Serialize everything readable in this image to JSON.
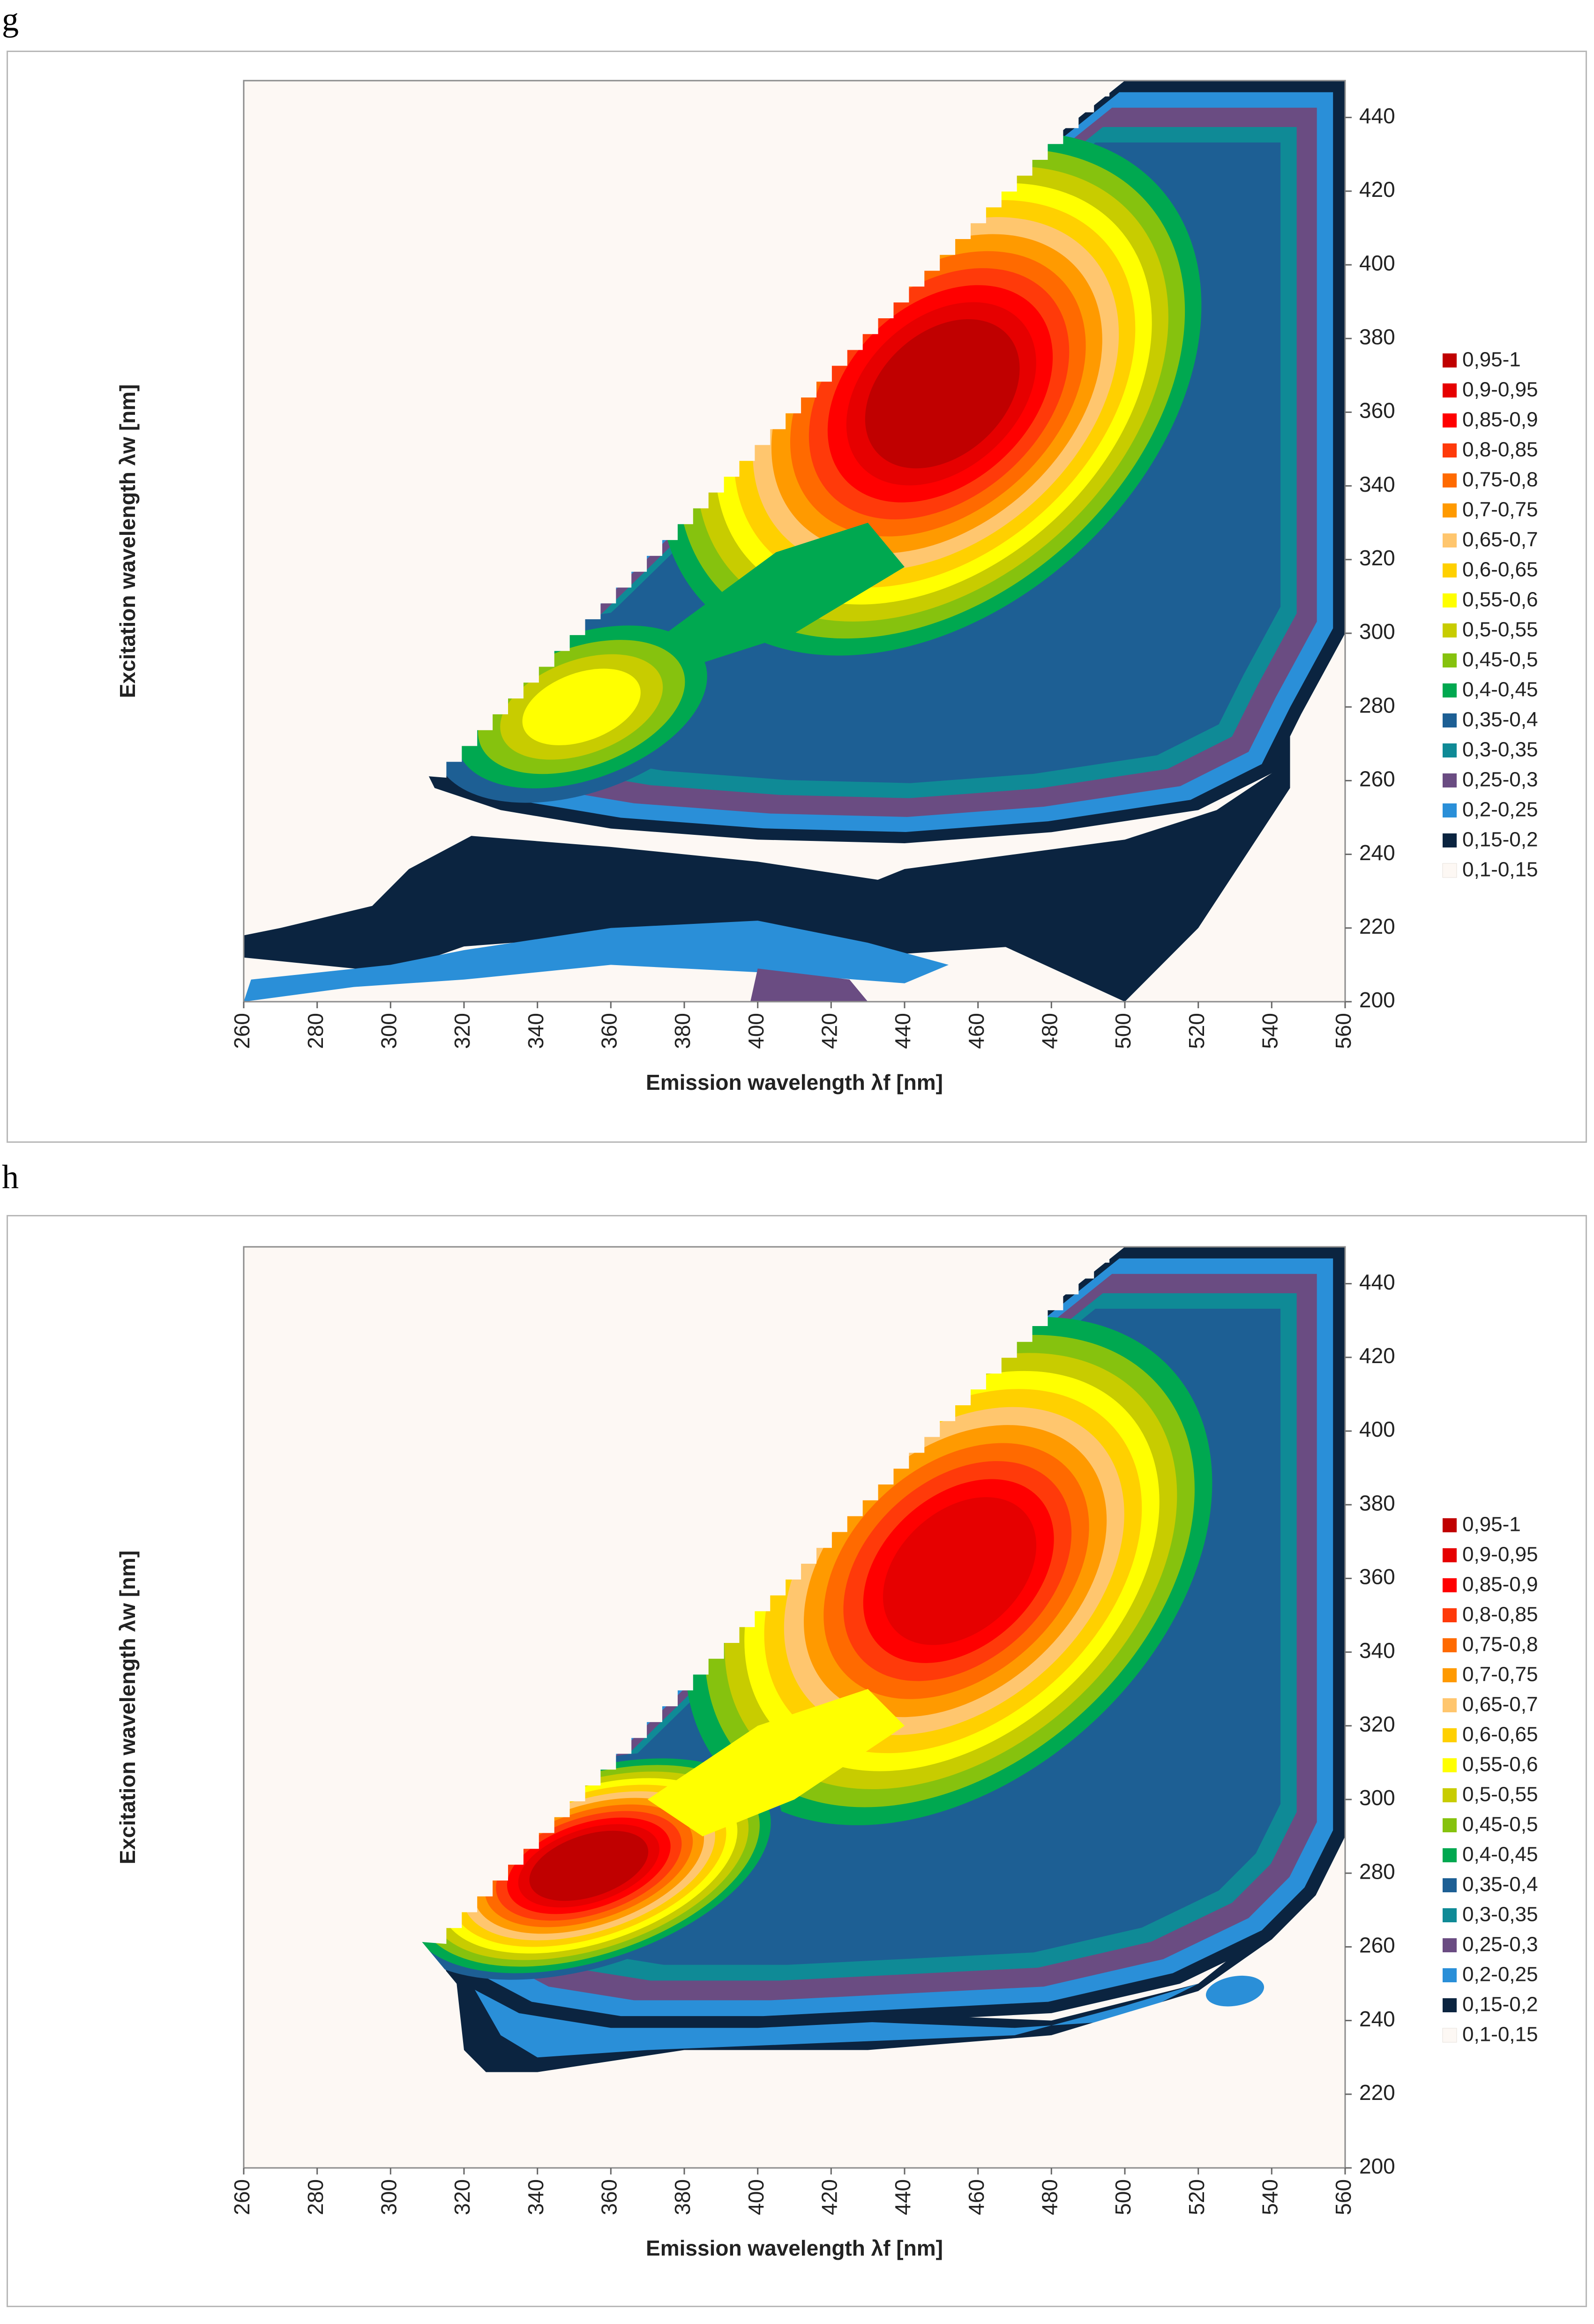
{
  "legend": {
    "colors": [
      "#c00000",
      "#e60000",
      "#ff0000",
      "#ff3a0a",
      "#ff6a00",
      "#ff9a00",
      "#ffc66e",
      "#ffd000",
      "#ffff00",
      "#c8cc00",
      "#86c20e",
      "#00a850",
      "#1d5f94",
      "#0f8a96",
      "#6a4c82",
      "#2a8fd8",
      "#0b2440",
      "#fdf8f4"
    ],
    "labels": [
      "0,95-1",
      "0,9-0,95",
      "0,85-0,9",
      "0,8-0,85",
      "0,75-0,8",
      "0,7-0,75",
      "0,65-0,7",
      "0,6-0,65",
      "0,55-0,6",
      "0,5-0,55",
      "0,45-0,5",
      "0,4-0,45",
      "0,35-0,4",
      "0,3-0,35",
      "0,25-0,3",
      "0,2-0,25",
      "0,15-0,2",
      "0,1-0,15"
    ]
  },
  "chart_data": [
    {
      "panel": "g",
      "type": "heatmap",
      "subtype": "filled-contour",
      "xlabel": "Emission wavelength λf [nm]",
      "ylabel": "Excitation wavelength λw [nm]",
      "xlim": [
        260,
        560
      ],
      "ylim": [
        200,
        450
      ],
      "xticks": [
        260,
        280,
        300,
        320,
        340,
        360,
        380,
        400,
        420,
        440,
        460,
        480,
        500,
        520,
        540,
        560
      ],
      "yticks": [
        200,
        220,
        240,
        260,
        280,
        300,
        320,
        340,
        360,
        380,
        400,
        420,
        440
      ],
      "peaks": [
        {
          "emission": 447,
          "excitation": 365,
          "level": "0,95-1"
        },
        {
          "emission": 352,
          "excitation": 280,
          "level": "0,55-0,6"
        }
      ]
    },
    {
      "panel": "h",
      "type": "heatmap",
      "subtype": "filled-contour",
      "xlabel": "Emission wavelength λf [nm]",
      "ylabel": "Excitation wavelength λw [nm]",
      "xlim": [
        260,
        560
      ],
      "ylim": [
        200,
        450
      ],
      "xticks": [
        260,
        280,
        300,
        320,
        340,
        360,
        380,
        400,
        420,
        440,
        460,
        480,
        500,
        520,
        540,
        560
      ],
      "yticks": [
        200,
        220,
        240,
        260,
        280,
        300,
        320,
        340,
        360,
        380,
        400,
        420,
        440
      ],
      "peaks": [
        {
          "emission": 450,
          "excitation": 362,
          "level": "0,9-0,95"
        },
        {
          "emission": 354,
          "excitation": 282,
          "level": "0,95-1"
        }
      ]
    }
  ]
}
